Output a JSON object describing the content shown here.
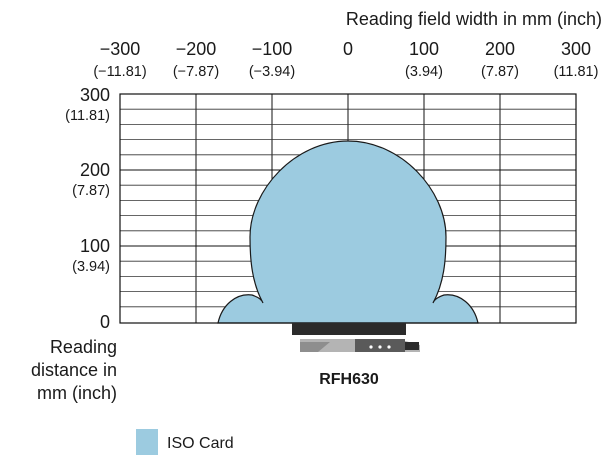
{
  "diagram": {
    "top_axis_title": "Reading field width in mm (inch)",
    "x_ticks": [
      {
        "mm": "−300",
        "inch": "(−11.81)",
        "value": -300
      },
      {
        "mm": "−200",
        "inch": "(−7.87)",
        "value": -200
      },
      {
        "mm": "−100",
        "inch": "(−3.94)",
        "value": -100
      },
      {
        "mm": "0",
        "inch": "",
        "value": 0
      },
      {
        "mm": "100",
        "inch": "(3.94)",
        "value": 100
      },
      {
        "mm": "200",
        "inch": "(7.87)",
        "value": 200
      },
      {
        "mm": "300",
        "inch": "(11.81)",
        "value": 300
      }
    ],
    "y_ticks": [
      {
        "mm": "300",
        "inch": "(11.81)",
        "value": 300
      },
      {
        "mm": "200",
        "inch": "(7.87)",
        "value": 200
      },
      {
        "mm": "100",
        "inch": "(3.94)",
        "value": 100
      },
      {
        "mm": "0",
        "inch": "",
        "value": 0
      }
    ],
    "y_axis_title": [
      "Reading",
      "distance in",
      "mm (inch)"
    ],
    "device_label": "RFH630",
    "legend": [
      {
        "label": "ISO Card",
        "color": "#9ccbe0"
      }
    ],
    "colors": {
      "field_fill": "#9ccbe0",
      "field_stroke": "#1a1a1a",
      "grid": "#333333",
      "reader_body": "#2b2b2b",
      "reader_side": "#a8a8a8"
    }
  }
}
